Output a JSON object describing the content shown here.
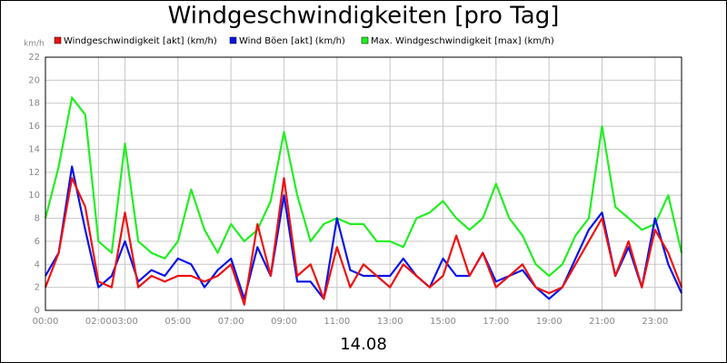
{
  "chart_data": {
    "type": "line",
    "title": "Windgeschwindigkeiten [pro Tag]",
    "xlabel": "14.08",
    "ylabel": "km/h",
    "legend": "top",
    "grid": true,
    "xlim": [
      0,
      24
    ],
    "ylim": [
      0,
      22
    ],
    "yticks": [
      0,
      2,
      4,
      6,
      8,
      10,
      12,
      14,
      16,
      18,
      20,
      22
    ],
    "xticks": [
      {
        "value": 0,
        "label": "00:00"
      },
      {
        "value": 2,
        "label": "02:00"
      },
      {
        "value": 3,
        "label": "03:00"
      },
      {
        "value": 5,
        "label": "05:00"
      },
      {
        "value": 7,
        "label": "07:00"
      },
      {
        "value": 9,
        "label": "09:00"
      },
      {
        "value": 11,
        "label": "11:00"
      },
      {
        "value": 13,
        "label": "13:00"
      },
      {
        "value": 15,
        "label": "15:00"
      },
      {
        "value": 17,
        "label": "17:00"
      },
      {
        "value": 19,
        "label": "19:00"
      },
      {
        "value": 21,
        "label": "21:00"
      },
      {
        "value": 23,
        "label": "23:00"
      }
    ],
    "x": [
      0,
      0.5,
      1,
      1.5,
      2,
      2.5,
      3,
      3.5,
      4,
      4.5,
      5,
      5.5,
      6,
      6.5,
      7,
      7.5,
      8,
      8.5,
      9,
      9.5,
      10,
      10.5,
      11,
      11.5,
      12,
      12.5,
      13,
      13.5,
      14,
      14.5,
      15,
      15.5,
      16,
      16.5,
      17,
      17.5,
      18,
      18.5,
      19,
      19.5,
      20,
      20.5,
      21,
      21.5,
      22,
      22.5,
      23,
      23.5,
      24
    ],
    "series": [
      {
        "name": "Windgeschwindigkeit [akt] (km/h)",
        "color": "#ee1111",
        "values": [
          2,
          5,
          11.5,
          9,
          2.5,
          2,
          8.5,
          2,
          3,
          2.5,
          3,
          3,
          2.5,
          3,
          4,
          0.5,
          7.5,
          3,
          11.5,
          3,
          4,
          1,
          5.5,
          2,
          4,
          3,
          2,
          4,
          3,
          2,
          3,
          6.5,
          3,
          5,
          2,
          3,
          4,
          2,
          1.5,
          2,
          4,
          6,
          8,
          3,
          6,
          2,
          7,
          5,
          2
        ]
      },
      {
        "name": "Wind Böen [akt] (km/h)",
        "color": "#0a14e6",
        "values": [
          3,
          5,
          12.5,
          7,
          2,
          3,
          6,
          2.5,
          3.5,
          3,
          4.5,
          4,
          2,
          3.5,
          4.5,
          1,
          5.5,
          3,
          10,
          2.5,
          2.5,
          1,
          8,
          3.5,
          3,
          3,
          3,
          4.5,
          3,
          2,
          4.5,
          3,
          3,
          5,
          2.5,
          3,
          3.5,
          2,
          1,
          2,
          4.5,
          7,
          8.5,
          3,
          5.5,
          2,
          8,
          4,
          1.5
        ]
      },
      {
        "name": "Max. Windgeschwindigkeit [max] (km/h)",
        "color": "#22ee22",
        "values": [
          8,
          12.5,
          18.5,
          17,
          6,
          5,
          14.5,
          6,
          5,
          4.5,
          6,
          10.5,
          7,
          5,
          7.5,
          6,
          7,
          9.5,
          15.5,
          10,
          6,
          7.5,
          8,
          7.5,
          7.5,
          6,
          6,
          5.5,
          8,
          8.5,
          9.5,
          8,
          7,
          8,
          11,
          8,
          6.5,
          4,
          3,
          4,
          6.5,
          8,
          16,
          9,
          8,
          7,
          7.5,
          10,
          5
        ]
      }
    ]
  }
}
